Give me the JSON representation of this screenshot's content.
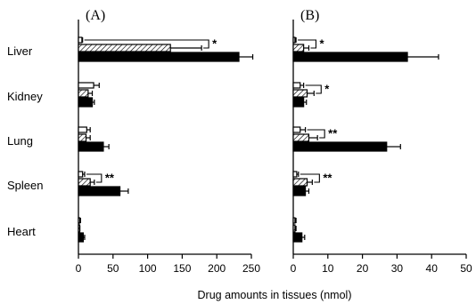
{
  "figure": {
    "xlabel": "Drug amounts in tissues (nmol)"
  },
  "chart_data": [
    {
      "type": "bar",
      "orientation": "horizontal",
      "panel_label": "(A)",
      "categories": [
        "Liver",
        "Kidney",
        "Lung",
        "Spleen",
        "Heart"
      ],
      "xlim": [
        0,
        250
      ],
      "xticks": [
        "0",
        "50",
        "100",
        "150",
        "200",
        "250"
      ],
      "series": [
        {
          "style": "open",
          "values": [
            5,
            22,
            12,
            6,
            2
          ],
          "errors": [
            1,
            8,
            5,
            3,
            1
          ]
        },
        {
          "style": "hatched",
          "values": [
            133,
            14,
            11,
            17,
            1
          ],
          "errors": [
            45,
            6,
            6,
            6,
            1
          ]
        },
        {
          "style": "solid",
          "values": [
            232,
            20,
            36,
            60,
            7
          ],
          "errors": [
            20,
            3,
            8,
            12,
            2
          ]
        }
      ],
      "significance": [
        {
          "category": "Liver",
          "label": "*"
        },
        {
          "category": "Spleen",
          "label": "**"
        }
      ]
    },
    {
      "type": "bar",
      "orientation": "horizontal",
      "panel_label": "(B)",
      "categories": [
        "Liver",
        "Kidney",
        "Lung",
        "Spleen",
        "Heart"
      ],
      "xlim": [
        0,
        50
      ],
      "xticks": [
        "0",
        "10",
        "20",
        "30",
        "40",
        "50"
      ],
      "series": [
        {
          "style": "open",
          "values": [
            0.5,
            2,
            2,
            1,
            0.5
          ],
          "errors": [
            0.3,
            1,
            1.5,
            0.5,
            0.3
          ]
        },
        {
          "style": "hatched",
          "values": [
            3,
            4,
            4.5,
            4,
            0.5
          ],
          "errors": [
            1.5,
            2,
            2.5,
            1.5,
            0.3
          ]
        },
        {
          "style": "solid",
          "values": [
            33,
            3,
            27,
            3.5,
            2.5
          ],
          "errors": [
            9,
            0.8,
            4,
            1,
            0.8
          ]
        }
      ],
      "significance": [
        {
          "category": "Liver",
          "label": "*"
        },
        {
          "category": "Kidney",
          "label": "*"
        },
        {
          "category": "Lung",
          "label": "**"
        },
        {
          "category": "Spleen",
          "label": "**"
        }
      ]
    }
  ]
}
